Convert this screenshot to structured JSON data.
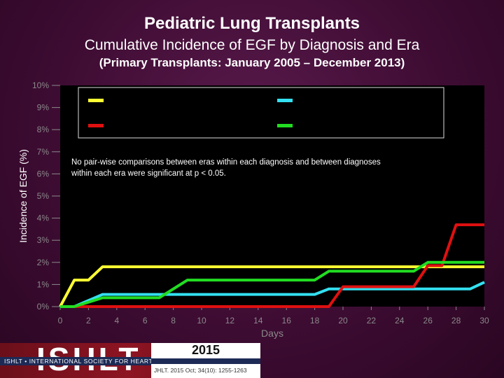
{
  "header": {
    "title": "Pediatric Lung Transplants",
    "subtitle": "Cumulative Incidence of EGF by Diagnosis and Era",
    "subtitle2": "(Primary Transplants: January 2005 – December 2013)"
  },
  "chart_data": {
    "type": "line",
    "xlabel": "Days",
    "ylabel": "Incidence of EGF (%)",
    "xlim": [
      0,
      30
    ],
    "ylim": [
      0,
      10
    ],
    "x_ticks": [
      "0",
      "2",
      "4",
      "6",
      "8",
      "10",
      "12",
      "14",
      "16",
      "18",
      "20",
      "22",
      "24",
      "26",
      "28",
      "30"
    ],
    "y_ticks": [
      "0%",
      "1%",
      "2%",
      "3%",
      "4%",
      "5%",
      "6%",
      "7%",
      "8%",
      "9%",
      "10%"
    ],
    "grid": false,
    "legend_position": "top",
    "annotation": "No pair-wise comparisons between eras within each diagnosis and between diagnoses within each era were significant at p < 0.05.",
    "series": [
      {
        "color": "#ffff33",
        "points": [
          [
            0,
            0
          ],
          [
            1,
            1.2
          ],
          [
            2,
            1.2
          ],
          [
            3,
            1.8
          ],
          [
            30,
            1.8
          ]
        ]
      },
      {
        "color": "#33e0f0",
        "points": [
          [
            0,
            0
          ],
          [
            1,
            0
          ],
          [
            3,
            0.55
          ],
          [
            18,
            0.55
          ],
          [
            19,
            0.8
          ],
          [
            29,
            0.8
          ],
          [
            30,
            1.1
          ]
        ]
      },
      {
        "color": "#e01010",
        "points": [
          [
            0,
            0
          ],
          [
            19,
            0
          ],
          [
            20,
            0.9
          ],
          [
            25,
            0.9
          ],
          [
            26,
            1.85
          ],
          [
            27,
            1.85
          ],
          [
            28,
            3.7
          ],
          [
            30,
            3.7
          ]
        ]
      },
      {
        "color": "#22dd22",
        "points": [
          [
            0,
            0
          ],
          [
            1,
            0
          ],
          [
            3,
            0.4
          ],
          [
            7,
            0.4
          ],
          [
            9,
            1.2
          ],
          [
            18,
            1.2
          ],
          [
            19,
            1.6
          ],
          [
            25,
            1.6
          ],
          [
            26,
            2.0
          ],
          [
            30,
            2.0
          ]
        ]
      }
    ]
  },
  "footer": {
    "logo": "ISHLT",
    "org": "ISHLT • INTERNATIONAL SOCIETY FOR HEART AND LUNG TRANSPLANTATION",
    "year": "2015",
    "citation": "JHLT. 2015 Oct; 34(10): 1255-1263"
  }
}
